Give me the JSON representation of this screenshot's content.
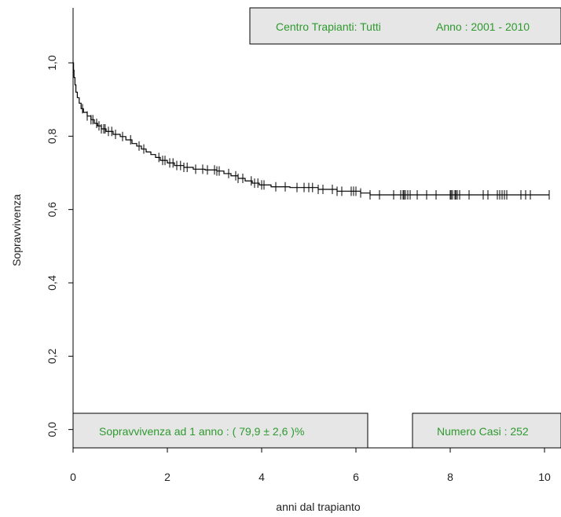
{
  "colors": {
    "curve": "#000000",
    "box_fill": "#e6e6e6",
    "box_text": "#2e9a2e",
    "axis": "#000000",
    "label": "#222222"
  },
  "annotations": {
    "center": "Centro Trapianti: Tutti",
    "year": "Anno :  2001 - 2010",
    "survival_1yr": "Sopravvivenza  ad 1 anno  : ( 79,9 ± 2,6 )%",
    "cases": "Numero Casi :  252"
  },
  "chart_data": {
    "type": "line",
    "subtype": "kaplan-meier step curve with censoring marks",
    "xlabel": "anni dal trapianto",
    "ylabel": "Sopravvivenza",
    "xlim": [
      0,
      10.35
    ],
    "ylim": [
      -0.05,
      1.15
    ],
    "x_ticks": [
      0,
      2,
      4,
      6,
      8,
      10
    ],
    "x_tick_labels": [
      "0",
      "2",
      "4",
      "6",
      "8",
      "10"
    ],
    "y_ticks": [
      0.0,
      0.2,
      0.4,
      0.6,
      0.8,
      1.0
    ],
    "y_tick_labels": [
      "0,0",
      "0,2",
      "0,4",
      "0,6",
      "0,8",
      "1,0"
    ],
    "grid": false,
    "series": [
      {
        "steps": [
          [
            0.0,
            1.0
          ],
          [
            0.01,
            0.98
          ],
          [
            0.02,
            0.96
          ],
          [
            0.04,
            0.94
          ],
          [
            0.06,
            0.92
          ],
          [
            0.09,
            0.905
          ],
          [
            0.13,
            0.89
          ],
          [
            0.17,
            0.875
          ],
          [
            0.22,
            0.865
          ],
          [
            0.3,
            0.855
          ],
          [
            0.38,
            0.845
          ],
          [
            0.45,
            0.835
          ],
          [
            0.52,
            0.828
          ],
          [
            0.6,
            0.82
          ],
          [
            0.7,
            0.813
          ],
          [
            0.85,
            0.805
          ],
          [
            1.0,
            0.799
          ],
          [
            1.12,
            0.79
          ],
          [
            1.25,
            0.78
          ],
          [
            1.35,
            0.773
          ],
          [
            1.45,
            0.765
          ],
          [
            1.55,
            0.757
          ],
          [
            1.65,
            0.75
          ],
          [
            1.75,
            0.742
          ],
          [
            1.85,
            0.734
          ],
          [
            2.0,
            0.727
          ],
          [
            2.15,
            0.72
          ],
          [
            2.35,
            0.715
          ],
          [
            2.55,
            0.71
          ],
          [
            2.8,
            0.708
          ],
          [
            3.05,
            0.705
          ],
          [
            3.2,
            0.698
          ],
          [
            3.35,
            0.692
          ],
          [
            3.5,
            0.685
          ],
          [
            3.65,
            0.678
          ],
          [
            3.8,
            0.672
          ],
          [
            3.95,
            0.667
          ],
          [
            4.2,
            0.662
          ],
          [
            4.6,
            0.66
          ],
          [
            5.2,
            0.655
          ],
          [
            5.6,
            0.65
          ],
          [
            6.1,
            0.645
          ],
          [
            6.3,
            0.64
          ]
        ],
        "end_x": 10.1,
        "censored": [
          0.2,
          0.3,
          0.38,
          0.42,
          0.5,
          0.55,
          0.6,
          0.65,
          0.68,
          0.75,
          0.82,
          0.9,
          1.05,
          1.22,
          1.4,
          1.5,
          1.82,
          1.9,
          1.95,
          2.05,
          2.12,
          2.2,
          2.28,
          2.35,
          2.42,
          2.6,
          2.75,
          2.85,
          3.0,
          3.05,
          3.1,
          3.3,
          3.45,
          3.5,
          3.6,
          3.78,
          3.85,
          3.92,
          4.0,
          4.05,
          4.3,
          4.5,
          4.75,
          4.9,
          5.0,
          5.08,
          5.2,
          5.3,
          5.5,
          5.6,
          5.7,
          5.9,
          5.95,
          6.0,
          6.1,
          6.3,
          6.5,
          6.8,
          6.95,
          7.0,
          7.02,
          7.05,
          7.1,
          7.15,
          7.3,
          7.5,
          7.7,
          8.0,
          8.02,
          8.05,
          8.1,
          8.12,
          8.15,
          8.2,
          8.4,
          8.7,
          8.8,
          9.0,
          9.05,
          9.1,
          9.15,
          9.2,
          9.5,
          9.6,
          9.7,
          10.1
        ]
      }
    ]
  }
}
